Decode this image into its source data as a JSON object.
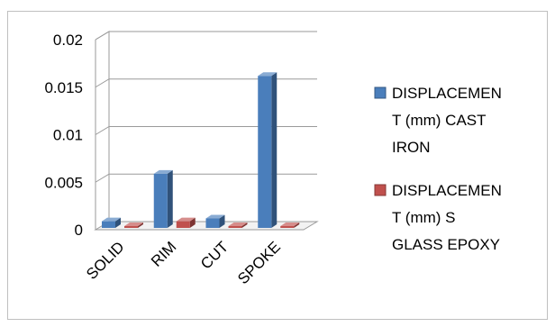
{
  "chart_data": {
    "type": "bar",
    "categories": [
      "SOLID",
      "RIM",
      "CUT",
      "SPOKE"
    ],
    "series": [
      {
        "name": "DISPLACEMENT (mm) CAST IRON",
        "legend_lines": [
          "DISPLACEMEN",
          "T (mm) CAST",
          "IRON"
        ],
        "color": "#4a7ebb",
        "values": [
          0.0007,
          0.0057,
          0.001,
          0.016
        ]
      },
      {
        "name": "DISPLACEMENT (mm) S GLASS EPOXY",
        "legend_lines": [
          "DISPLACEMEN",
          "T (mm) S",
          "GLASS EPOXY"
        ],
        "color": "#c0504d",
        "values": [
          0.0001,
          0.0007,
          0.0001,
          0.0001
        ]
      }
    ],
    "y_ticks": [
      "0",
      "0.005",
      "0.01",
      "0.015",
      "0.02"
    ],
    "ylim": [
      0,
      0.02
    ],
    "grid": true,
    "legend_position": "right",
    "three_d": true
  }
}
